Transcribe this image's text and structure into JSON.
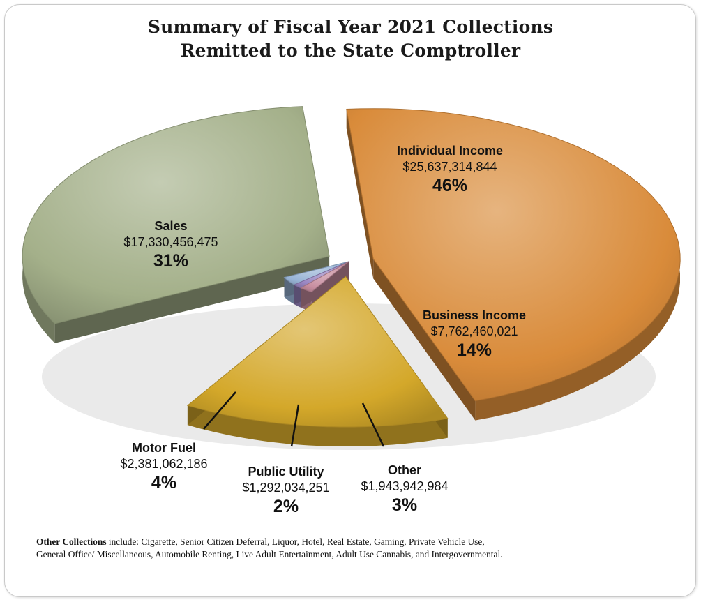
{
  "chart_data": {
    "type": "pie",
    "title": "Summary of Fiscal Year 2021 Collections",
    "subtitle": "Remitted to the State Comptroller",
    "slices": [
      {
        "label": "Individual Income",
        "amount": "$25,637,314,844",
        "percent": "46%",
        "value": 46,
        "color": "#d98b3a"
      },
      {
        "label": "Business Income",
        "amount": "$7,762,460,021",
        "percent": "14%",
        "value": 14,
        "color": "#d4a82a"
      },
      {
        "label": "Other",
        "amount": "$1,943,942,984",
        "percent": "3%",
        "value": 3,
        "color": "#c88ea0"
      },
      {
        "label": "Public Utility",
        "amount": "$1,292,034,251",
        "percent": "2%",
        "value": 2,
        "color": "#9a86c2"
      },
      {
        "label": "Motor Fuel",
        "amount": "$2,381,062,186",
        "percent": "4%",
        "value": 4,
        "color": "#98b4d6"
      },
      {
        "label": "Sales",
        "amount": "$17,330,456,475",
        "percent": "31%",
        "value": 31,
        "color": "#a4b08a"
      }
    ]
  },
  "footnote": {
    "bold": "Other Collections",
    "line1": " include: Cigarette, Senior Citizen Deferral, Liquor, Hotel, Real Estate, Gaming, Private Vehicle Use,",
    "line2": "General Office/ Miscellaneous, Automobile Renting, Live Adult Entertainment, Adult Use Cannabis, and Intergovernmental."
  }
}
